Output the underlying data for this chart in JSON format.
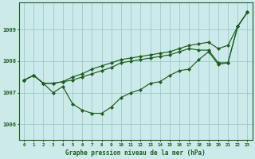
{
  "title": "Graphe pression niveau de la mer (hPa)",
  "xlabel_hours": [
    0,
    1,
    2,
    3,
    4,
    5,
    6,
    7,
    8,
    9,
    10,
    11,
    12,
    13,
    14,
    15,
    16,
    17,
    18,
    19,
    20,
    21,
    22,
    23
  ],
  "ylim": [
    1005.5,
    1009.85
  ],
  "yticks": [
    1006,
    1007,
    1008,
    1009
  ],
  "background_color": "#cceaea",
  "grid_color": "#99cccc",
  "line_color": "#1e5c1e",
  "line1": [
    1007.4,
    1007.55,
    1007.3,
    1007.3,
    1007.35,
    1007.5,
    1007.6,
    1007.75,
    1007.85,
    1007.95,
    1008.05,
    1008.1,
    1008.15,
    1008.2,
    1008.25,
    1008.3,
    1008.4,
    1008.5,
    1008.55,
    1008.6,
    1008.4,
    1008.5,
    1009.1,
    1009.55
  ],
  "line2": [
    1007.4,
    1007.55,
    1007.3,
    1007.3,
    1007.35,
    1007.4,
    1007.5,
    1007.6,
    1007.7,
    1007.8,
    1007.95,
    1008.0,
    1008.05,
    1008.1,
    1008.15,
    1008.2,
    1008.3,
    1008.4,
    1008.35,
    1008.35,
    1007.95,
    1007.95,
    1009.1,
    1009.55
  ],
  "line3": [
    1007.4,
    1007.55,
    1007.3,
    1007.0,
    1007.2,
    1006.65,
    1006.45,
    1006.35,
    1006.35,
    1006.55,
    1006.85,
    1007.0,
    1007.1,
    1007.3,
    1007.35,
    1007.55,
    1007.7,
    1007.75,
    1008.05,
    1008.3,
    1007.9,
    1007.95,
    1009.1,
    1009.55
  ]
}
